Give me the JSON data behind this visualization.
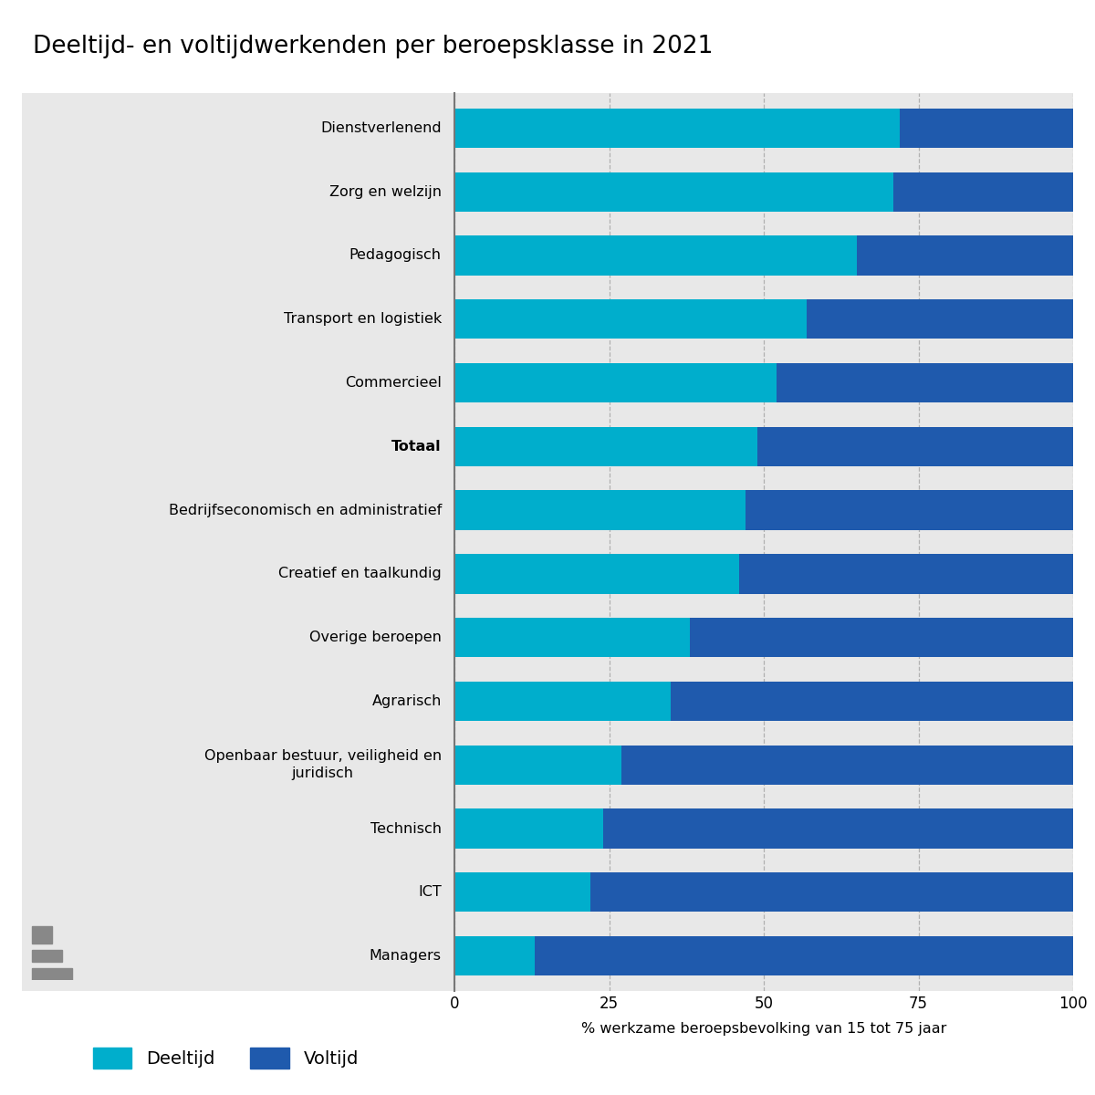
{
  "title": "Deeltijd- en voltijdwerkenden per beroepsklasse in 2021",
  "categories": [
    "Dienstverlenend",
    "Zorg en welzijn",
    "Pedagogisch",
    "Transport en logistiek",
    "Commercieel",
    "Totaal",
    "Bedrijfseconomisch en administratief",
    "Creatief en taalkundig",
    "Overige beroepen",
    "Agrarisch",
    "Openbaar bestuur, veiligheid en\njuridisch",
    "Technisch",
    "ICT",
    "Managers"
  ],
  "totaal_index": 5,
  "deeltijd": [
    72,
    71,
    65,
    57,
    52,
    49,
    47,
    46,
    38,
    35,
    27,
    24,
    22,
    13
  ],
  "color_deeltijd": "#00AECC",
  "color_voltijd": "#1F5AAD",
  "xlabel": "% werkzame beroepsbevolking van 15 tot 75 jaar",
  "xticks": [
    0,
    25,
    50,
    75,
    100
  ],
  "xlim": [
    0,
    100
  ],
  "legend_deeltijd": "Deeltijd",
  "legend_voltijd": "Voltijd",
  "panel_bg": "#E8E8E8",
  "fig_bg": "#FFFFFF",
  "title_fontsize": 19,
  "label_fontsize": 11.5,
  "tick_fontsize": 12,
  "legend_fontsize": 14,
  "bar_height": 0.62
}
